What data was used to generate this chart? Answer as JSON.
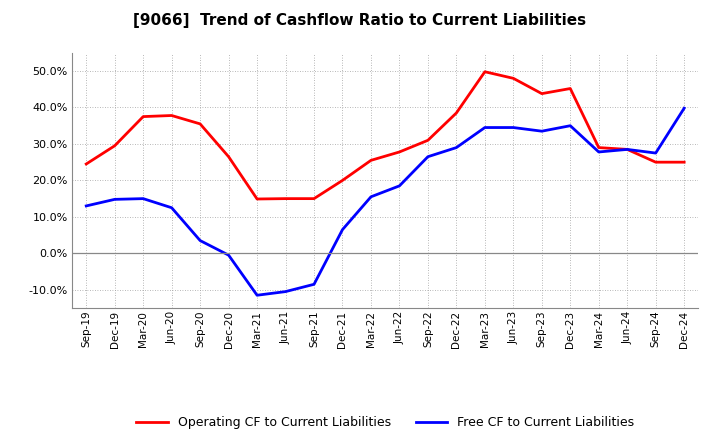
{
  "title": "[9066]  Trend of Cashflow Ratio to Current Liabilities",
  "x_labels": [
    "Sep-19",
    "Dec-19",
    "Mar-20",
    "Jun-20",
    "Sep-20",
    "Dec-20",
    "Mar-21",
    "Jun-21",
    "Sep-21",
    "Dec-21",
    "Mar-22",
    "Jun-22",
    "Sep-22",
    "Dec-22",
    "Mar-23",
    "Jun-23",
    "Sep-23",
    "Dec-23",
    "Mar-24",
    "Jun-24",
    "Sep-24",
    "Dec-24"
  ],
  "operating_cf": [
    0.245,
    0.295,
    0.375,
    0.378,
    0.355,
    0.265,
    0.149,
    0.15,
    0.15,
    0.2,
    0.255,
    0.278,
    0.31,
    0.385,
    0.498,
    0.48,
    0.438,
    0.452,
    0.29,
    0.285,
    0.25,
    0.25
  ],
  "free_cf": [
    0.13,
    0.148,
    0.15,
    0.125,
    0.035,
    -0.005,
    -0.115,
    -0.105,
    -0.085,
    0.065,
    0.155,
    0.185,
    0.265,
    0.29,
    0.345,
    0.345,
    0.335,
    0.35,
    0.278,
    0.285,
    0.275,
    0.398
  ],
  "operating_color": "#ff0000",
  "free_color": "#0000ff",
  "ylim": [
    -0.15,
    0.55
  ],
  "yticks": [
    -0.1,
    0.0,
    0.1,
    0.2,
    0.3,
    0.4,
    0.5
  ],
  "background_color": "#ffffff",
  "grid_color": "#a0a0a0",
  "legend_op": "Operating CF to Current Liabilities",
  "legend_free": "Free CF to Current Liabilities"
}
